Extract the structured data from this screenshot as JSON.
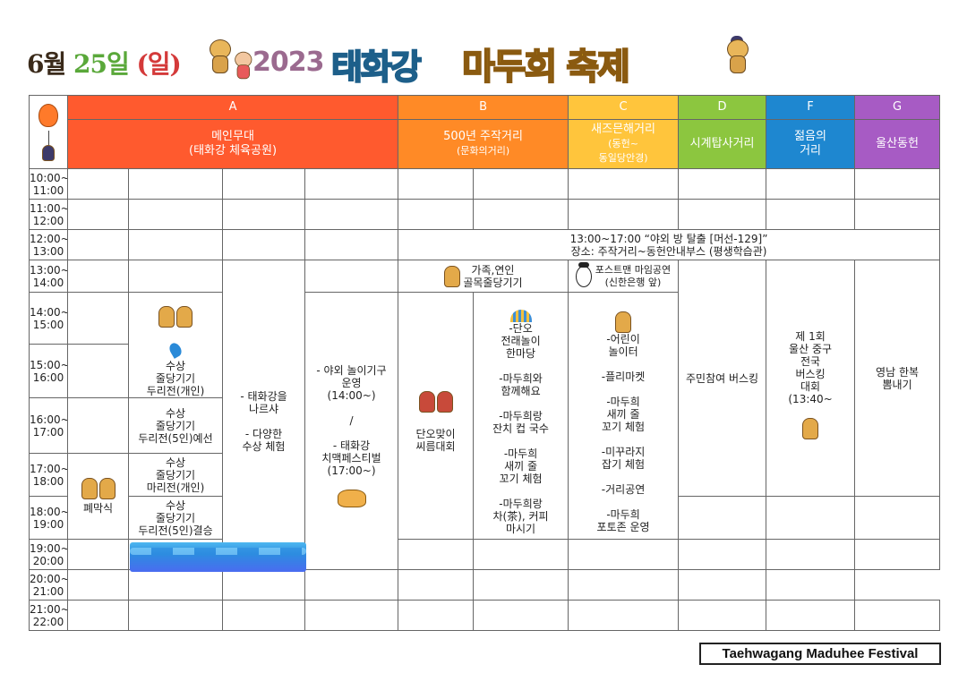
{
  "header": {
    "date_month": "6월",
    "date_day": "25일",
    "date_weekday": "(일)",
    "year": "2023",
    "title_part1": "태화강",
    "title_part2": "마두희 축제"
  },
  "columns": [
    {
      "letter": "A",
      "name": "메인무대",
      "sub": "(태화강 체육공원)",
      "color": "#ff5a2e"
    },
    {
      "letter": "B",
      "name": "500년 주작거리",
      "sub": "(문화의거리)",
      "color": "#ff8a26"
    },
    {
      "letter": "C",
      "name": "새즈믄해거리",
      "sub": "(동헌~\n동일당안경)",
      "color": "#ffc53c"
    },
    {
      "letter": "D",
      "name": "시계탑사거리",
      "sub": "",
      "color": "#8cc63f"
    },
    {
      "letter": "F",
      "name": "젊음의\n거리",
      "sub": "",
      "color": "#1e87d0"
    },
    {
      "letter": "G",
      "name": "울산동헌",
      "sub": "",
      "color": "#a75bc4"
    }
  ],
  "times": [
    "10:00~\n11:00",
    "11:00~\n12:00",
    "12:00~\n13:00",
    "13:00~\n14:00",
    "14:00~\n15:00",
    "15:00~\n16:00",
    "16:00~\n17:00",
    "17:00~\n18:00",
    "18:00~\n19:00",
    "19:00~\n20:00",
    "20:00~\n21:00",
    "21:00~\n22:00"
  ],
  "events": {
    "escape_room": "13:00~17:00 “야외 방 탈출 [머선-129]”\n장소: 주작거리~동헌안내부스 (평생학습관)",
    "family_tug": "가족,연인\n골목줄당기기",
    "mime": "포스트맨 마임공연\n(신한은행 앞)",
    "closing": "폐막식",
    "water_tug_1": "수상\n줄당기기\n두리전(개인)",
    "water_tug_2": "수상\n줄당기기\n두리전(5인)예선",
    "water_tug_3": "수상\n줄당기기\n마리전(개인)",
    "water_tug_4": "수상\n줄당기기\n두리전(5인)결승",
    "water_experience": "- 태화강을\n나르샤\n\n- 다양한\n수상 체험",
    "outdoor_play": "- 야외 놀이기구\n운영\n(14:00~)\n\n/\n\n- 태화강\n치맥페스티벌\n(17:00~)",
    "dano_wrestling": "단오맞이\n씨름대회",
    "b_activities": "-단오\n전래놀이\n한마당\n\n-마두희와\n함께해요\n\n-마두희랑\n잔치 컵 국수\n\n-마두희\n새끼 줄\n꼬기 체험\n\n-마두희랑\n차(茶), 커피\n마시기",
    "c_activities": "-어린이\n놀이터\n\n-플리마켓\n\n-마두희\n새끼 줄\n꼬기 체험\n\n-미꾸라지\n잡기 체험\n\n-거리공연\n\n-마두희\n포토존 운영",
    "busking_d": "주민참여 버스킹",
    "busking_f": "제 1회\n울산 중구\n전국\n버스킹\n대회\n(13:40~",
    "g_event": "영남 한복\n뽐내기"
  },
  "footer": "Taehwagang Maduhee Festival"
}
